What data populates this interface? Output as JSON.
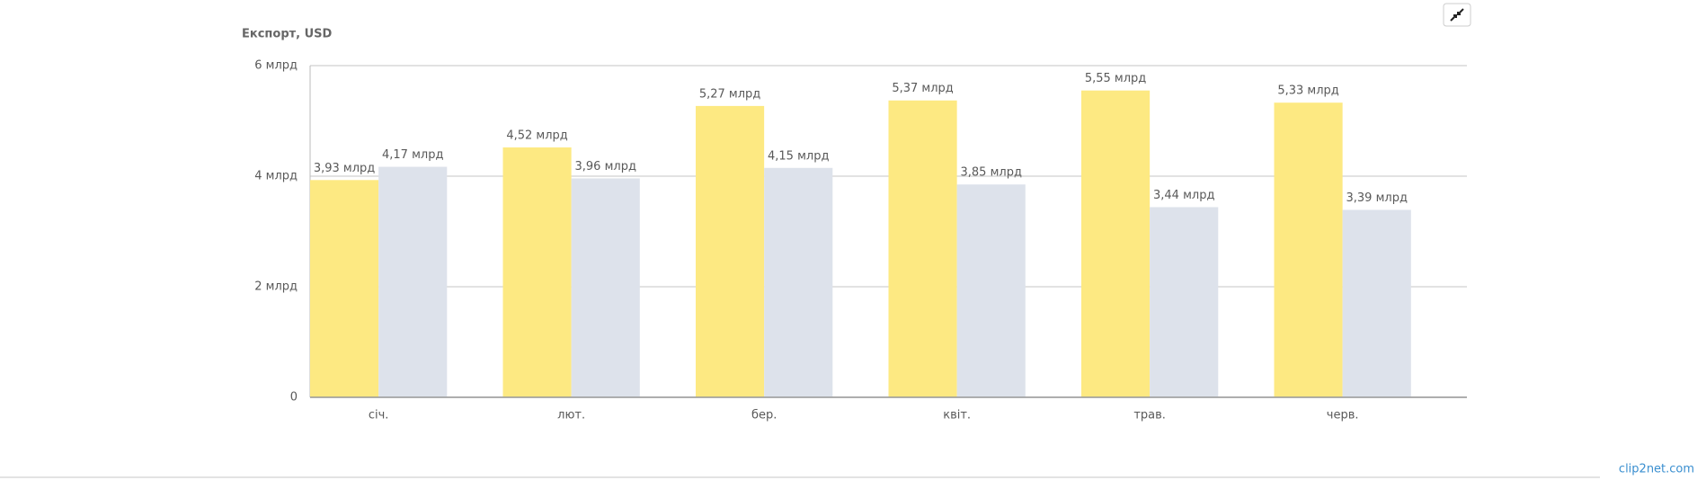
{
  "chart_data": {
    "type": "bar",
    "title": "Експорт, USD",
    "categories": [
      "січ.",
      "лют.",
      "бер.",
      "квіт.",
      "трав.",
      "черв."
    ],
    "series": [
      {
        "color": "#fde982",
        "values": [
          3.93,
          4.52,
          5.27,
          5.37,
          5.55,
          5.33
        ],
        "value_labels": [
          "3,93 млрд",
          "4,52 млрд",
          "5,27 млрд",
          "5,37 млрд",
          "5,55 млрд",
          "5,33 млрд"
        ]
      },
      {
        "color": "#dde2eb",
        "values": [
          4.17,
          3.96,
          4.15,
          3.85,
          3.44,
          3.39
        ],
        "value_labels": [
          "4,17 млрд",
          "3,96 млрд",
          "4,15 млрд",
          "3,85 млрд",
          "3,44 млрд",
          "3,39 млрд"
        ]
      }
    ],
    "ylim": [
      0,
      6
    ],
    "yticks": [
      0,
      {
        "value": 2,
        "label": "2 млрд"
      },
      {
        "value": 4,
        "label": "4 млрд"
      },
      {
        "value": 6,
        "label": "6 млрд"
      }
    ],
    "grid": true
  },
  "watermark": "clip2net.com"
}
